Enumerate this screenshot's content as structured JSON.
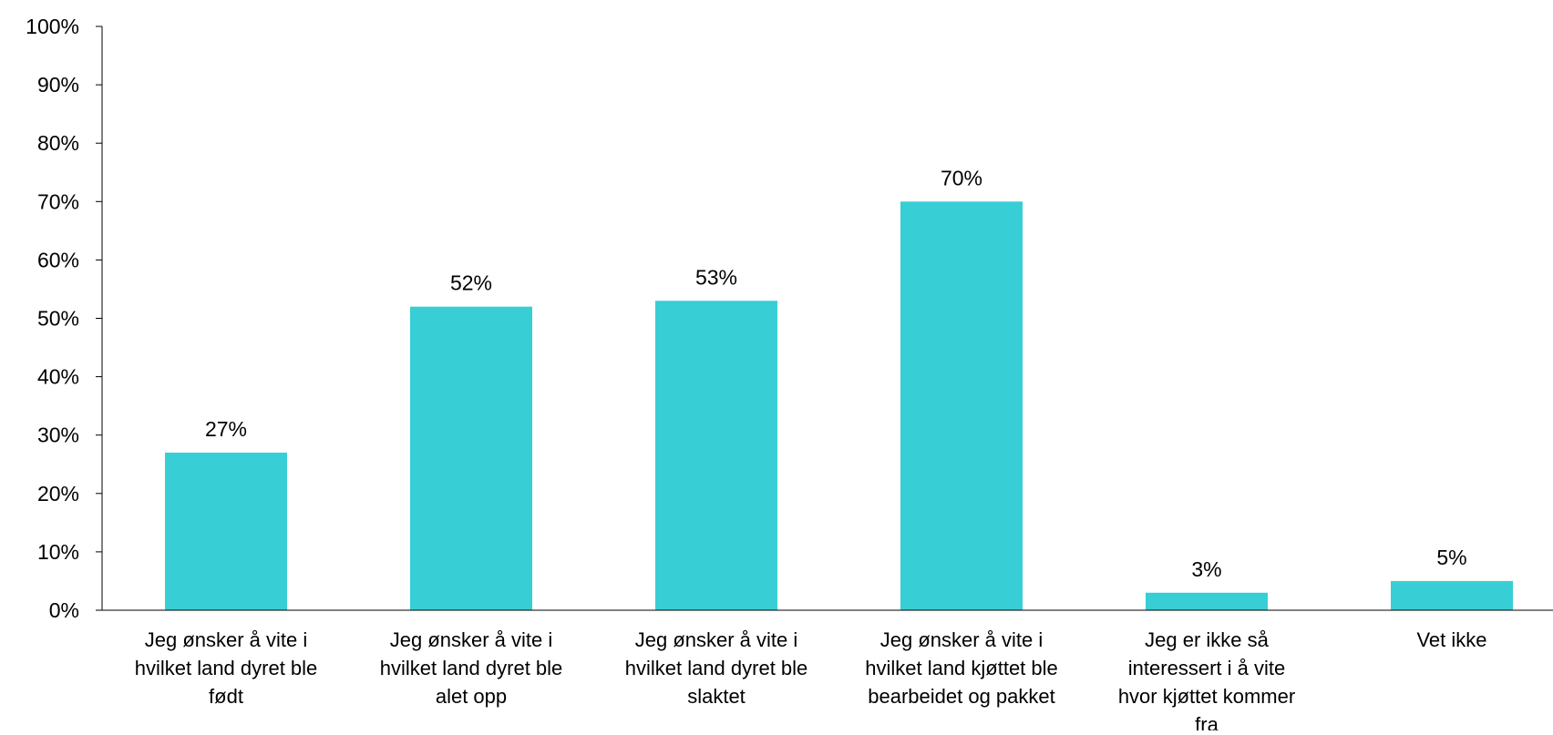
{
  "chart_data": {
    "type": "bar",
    "title": "",
    "xlabel": "",
    "ylabel": "",
    "ylim": [
      0,
      100
    ],
    "y_tick_values": [
      0,
      10,
      20,
      30,
      40,
      50,
      60,
      70,
      80,
      90,
      100
    ],
    "y_tick_labels": [
      "0%",
      "10%",
      "20%",
      "30%",
      "40%",
      "50%",
      "60%",
      "70%",
      "80%",
      "90%",
      "100%"
    ],
    "categories": [
      [
        "Jeg ønsker å vite i",
        "hvilket land dyret ble",
        "født"
      ],
      [
        "Jeg ønsker å vite i",
        "hvilket land dyret ble",
        "alet opp"
      ],
      [
        "Jeg ønsker å vite i",
        "hvilket land dyret ble",
        "slaktet"
      ],
      [
        "Jeg ønsker å vite i",
        "hvilket land kjøttet ble",
        "bearbeidet og pakket"
      ],
      [
        "Jeg er ikke så",
        "interessert i å vite",
        "hvor kjøttet kommer",
        "fra"
      ],
      [
        "Vet ikke"
      ]
    ],
    "values": [
      27,
      52,
      53,
      70,
      3,
      5
    ],
    "data_labels": [
      "27%",
      "52%",
      "53%",
      "70%",
      "3%",
      "5%"
    ],
    "bar_color": "#38CED5",
    "grid": false,
    "legend": "none"
  }
}
